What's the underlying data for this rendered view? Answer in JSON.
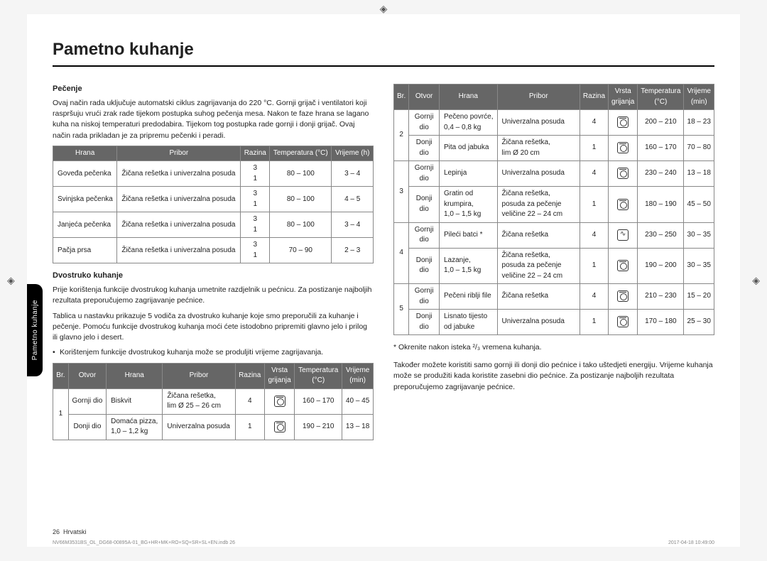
{
  "title": "Pametno kuhanje",
  "sideTab": "Pametno kuhanje",
  "pecenje": {
    "heading": "Pečenje",
    "para": "Ovaj način rada uključuje automatski ciklus zagrijavanja do 220 °C. Gornji grijač i ventilatori koji raspršuju vrući zrak rade tijekom postupka suhog pečenja mesa. Nakon te faze hrana se lagano kuha na niskoj temperaturi predodabira. Tijekom tog postupka rade gornji i donji grijač. Ovaj način rada prikladan je za pripremu pečenki i peradi.",
    "headers": [
      "Hrana",
      "Pribor",
      "Razina",
      "Temperatura (°C)",
      "Vrijeme (h)"
    ],
    "rows": [
      [
        "Goveđa pečenka",
        "Žičana rešetka i univerzalna posuda",
        "3\n1",
        "80 – 100",
        "3 – 4"
      ],
      [
        "Svinjska pečenka",
        "Žičana rešetka i univerzalna posuda",
        "3\n1",
        "80 – 100",
        "4 – 5"
      ],
      [
        "Janjeća pečenka",
        "Žičana rešetka i univerzalna posuda",
        "3\n1",
        "80 – 100",
        "3 – 4"
      ],
      [
        "Pačja prsa",
        "Žičana rešetka i univerzalna posuda",
        "3\n1",
        "70 – 90",
        "2 – 3"
      ]
    ]
  },
  "dvostruko": {
    "heading": "Dvostruko kuhanje",
    "para1": "Prije korištenja funkcije dvostrukog kuhanja umetnite razdjelnik u pećnicu. Za postizanje najboljih rezultata preporučujemo zagrijavanje pećnice.",
    "para2": "Tablica u nastavku prikazuje 5 vodiča za dvostruko kuhanje koje smo preporučili za kuhanje i pečenje. Pomoću funkcije dvostrukog kuhanja moći ćete istodobno pripremiti glavno jelo i prilog ili glavno jelo i desert.",
    "bullet": "Korištenjem funkcije dvostrukog kuhanja može se produljiti vrijeme zagrijavanja.",
    "headers": [
      "Br.",
      "Otvor",
      "Hrana",
      "Pribor",
      "Razina",
      "Vrsta grijanja",
      "Temperatura (°C)",
      "Vrijeme (min)"
    ],
    "rows1": [
      {
        "br": "1",
        "otvor": "Gornji dio",
        "hrana": "Biskvit",
        "pribor": "Žičana rešetka, lim Ø 25 – 26 cm",
        "razina": "4",
        "icon": "fan",
        "temp": "160 – 170",
        "vrijeme": "40 – 45"
      },
      {
        "br": "",
        "otvor": "Donji dio",
        "hrana": "Domaća pizza, 1,0 – 1,2 kg",
        "pribor": "Univerzalna posuda",
        "razina": "1",
        "icon": "fan",
        "temp": "190 – 210",
        "vrijeme": "13 – 18"
      }
    ],
    "rows2": [
      {
        "br": "2",
        "otvor": "Gornji dio",
        "hrana": "Pečeno povrće, 0,4 – 0,8 kg",
        "pribor": "Univerzalna posuda",
        "razina": "4",
        "icon": "fan",
        "temp": "200 – 210",
        "vrijeme": "18 – 23"
      },
      {
        "br": "",
        "otvor": "Donji dio",
        "hrana": "Pita od jabuka",
        "pribor": "Žičana rešetka, lim Ø 20 cm",
        "razina": "1",
        "icon": "fan",
        "temp": "160 – 170",
        "vrijeme": "70 – 80"
      },
      {
        "br": "3",
        "otvor": "Gornji dio",
        "hrana": "Lepinja",
        "pribor": "Univerzalna posuda",
        "razina": "4",
        "icon": "fan",
        "temp": "230 – 240",
        "vrijeme": "13 – 18"
      },
      {
        "br": "",
        "otvor": "Donji dio",
        "hrana": "Gratin od krumpira, 1,0 – 1,5 kg",
        "pribor": "Žičana rešetka, posuda za pečenje veličine 22 – 24 cm",
        "razina": "1",
        "icon": "fan",
        "temp": "180 – 190",
        "vrijeme": "45 – 50"
      },
      {
        "br": "4",
        "otvor": "Gornji dio",
        "hrana": "Pileći batci *",
        "pribor": "Žičana rešetka",
        "razina": "4",
        "icon": "conv",
        "temp": "230 – 250",
        "vrijeme": "30 – 35"
      },
      {
        "br": "",
        "otvor": "Donji dio",
        "hrana": "Lazanje, 1,0 – 1,5 kg",
        "pribor": "Žičana rešetka, posuda za pečenje veličine 22 – 24 cm",
        "razina": "1",
        "icon": "fan",
        "temp": "190 – 200",
        "vrijeme": "30 – 35"
      },
      {
        "br": "5",
        "otvor": "Gornji dio",
        "hrana": "Pečeni riblji file",
        "pribor": "Žičana rešetka",
        "razina": "4",
        "icon": "fan",
        "temp": "210 – 230",
        "vrijeme": "15 – 20"
      },
      {
        "br": "",
        "otvor": "Donji dio",
        "hrana": "Lisnato tijesto od jabuke",
        "pribor": "Univerzalna posuda",
        "razina": "1",
        "icon": "fan",
        "temp": "170 – 180",
        "vrijeme": "25 – 30"
      }
    ],
    "note": "* Okrenite nakon isteka ²/₃ vremena kuhanja.",
    "para3": "Također možete koristiti samo gornji ili donji dio pećnice i tako uštedjeti energiju. Vrijeme kuhanja može se produžiti kada koristite zasebni dio pećnice. Za postizanje najboljih rezultata preporučujemo zagrijavanje pećnice."
  },
  "footer": {
    "page": "26",
    "lang": "Hrvatski",
    "file": "NV66M3531BS_OL_DG68-00895A-01_BG+HR+MK+RO+SQ+SR+SL+EN.indb   26",
    "time": "2017-04-18   10:49:00"
  }
}
